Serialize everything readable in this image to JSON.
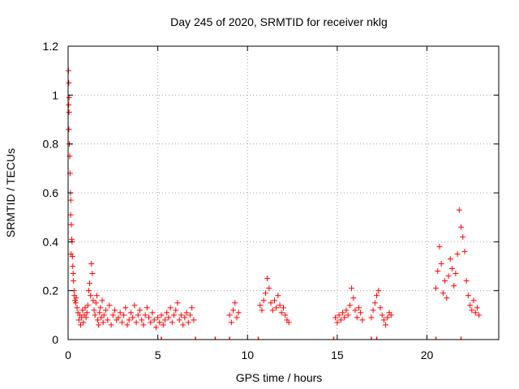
{
  "chart_data": {
    "type": "scatter",
    "title": "Day 245 of 2020, SRMTID for receiver nklg",
    "xlabel": "GPS time / hours",
    "ylabel": "SRMTID / TECUs",
    "xlim": [
      0,
      24
    ],
    "ylim": [
      0,
      1.2
    ],
    "xticks": [
      0,
      5,
      10,
      15,
      20
    ],
    "xtick_labels": [
      "0",
      "5",
      "10",
      "15",
      "20"
    ],
    "yticks": [
      0,
      0.2,
      0.4,
      0.6,
      0.8,
      1,
      1.2
    ],
    "ytick_labels": [
      "0",
      "0.2",
      "0.4",
      "0.6",
      "0.8",
      "1",
      "1.2"
    ],
    "grid": true,
    "marker": "+",
    "color": "#ff0000",
    "series": [
      {
        "name": "SRMTID",
        "points": [
          [
            0.02,
            1.1
          ],
          [
            0.04,
            1.05
          ],
          [
            0.06,
            0.99
          ],
          [
            0.03,
            0.96
          ],
          [
            0.05,
            0.93
          ],
          [
            0.04,
            0.86
          ],
          [
            0.07,
            0.8
          ],
          [
            0.09,
            0.75
          ],
          [
            0.11,
            0.68
          ],
          [
            0.13,
            0.6
          ],
          [
            0.15,
            0.57
          ],
          [
            0.14,
            0.51
          ],
          [
            0.18,
            0.47
          ],
          [
            0.2,
            0.41
          ],
          [
            0.22,
            0.4
          ],
          [
            0.16,
            0.35
          ],
          [
            0.24,
            0.34
          ],
          [
            0.26,
            0.3
          ],
          [
            0.28,
            0.27
          ],
          [
            0.3,
            0.24
          ],
          [
            0.33,
            0.2
          ],
          [
            0.35,
            0.18
          ],
          [
            0.38,
            0.16
          ],
          [
            0.42,
            0.15
          ],
          [
            0.45,
            0.17
          ],
          [
            0.5,
            0.13
          ],
          [
            0.55,
            0.11
          ],
          [
            0.6,
            0.08
          ],
          [
            0.65,
            0.1
          ],
          [
            0.7,
            0.06
          ],
          [
            0.75,
            0.09
          ],
          [
            0.8,
            0.12
          ],
          [
            0.85,
            0.07
          ],
          [
            0.9,
            0.1
          ],
          [
            0.95,
            0.13
          ],
          [
            1.0,
            0.09
          ],
          [
            1.05,
            0.11
          ],
          [
            1.1,
            0.14
          ],
          [
            1.15,
            0.2
          ],
          [
            1.2,
            0.23
          ],
          [
            1.25,
            0.18
          ],
          [
            1.3,
            0.31
          ],
          [
            1.35,
            0.27
          ],
          [
            1.4,
            0.16
          ],
          [
            1.45,
            0.12
          ],
          [
            1.5,
            0.1
          ],
          [
            1.55,
            0.15
          ],
          [
            1.6,
            0.18
          ],
          [
            1.65,
            0.08
          ],
          [
            1.7,
            0.06
          ],
          [
            1.75,
            0.11
          ],
          [
            1.8,
            0.13
          ],
          [
            1.85,
            0.09
          ],
          [
            1.9,
            0.16
          ],
          [
            1.95,
            0.07
          ],
          [
            2.0,
            0.1
          ],
          [
            2.1,
            0.12
          ],
          [
            2.2,
            0.08
          ],
          [
            2.3,
            0.14
          ],
          [
            2.4,
            0.06
          ],
          [
            2.5,
            0.1
          ],
          [
            2.6,
            0.12
          ],
          [
            2.7,
            0.08
          ],
          [
            2.8,
            0.09
          ],
          [
            2.9,
            0.11
          ],
          [
            3.0,
            0.07
          ],
          [
            3.1,
            0.1
          ],
          [
            3.2,
            0.13
          ],
          [
            3.3,
            0.06
          ],
          [
            3.4,
            0.08
          ],
          [
            3.5,
            0.11
          ],
          [
            3.6,
            0.09
          ],
          [
            3.7,
            0.14
          ],
          [
            3.8,
            0.07
          ],
          [
            3.9,
            0.1
          ],
          [
            4.0,
            0.12
          ],
          [
            4.1,
            0.08
          ],
          [
            4.2,
            0.06
          ],
          [
            4.3,
            0.1
          ],
          [
            4.4,
            0.13
          ],
          [
            4.5,
            0.09
          ],
          [
            4.6,
            0.07
          ],
          [
            4.7,
            0.11
          ],
          [
            4.8,
            0.08
          ],
          [
            4.9,
            0.05
          ],
          [
            5.0,
            0.09
          ],
          [
            5.1,
            0.07
          ],
          [
            5.2,
            0.1
          ],
          [
            5.3,
            0.06
          ],
          [
            5.4,
            0.08
          ],
          [
            5.5,
            0.11
          ],
          [
            5.6,
            0.09
          ],
          [
            5.7,
            0.13
          ],
          [
            5.8,
            0.07
          ],
          [
            5.9,
            0.1
          ],
          [
            6.0,
            0.12
          ],
          [
            6.1,
            0.15
          ],
          [
            6.2,
            0.08
          ],
          [
            6.3,
            0.1
          ],
          [
            6.4,
            0.06
          ],
          [
            6.5,
            0.09
          ],
          [
            6.6,
            0.11
          ],
          [
            6.7,
            0.07
          ],
          [
            6.8,
            0.1
          ],
          [
            6.9,
            0.13
          ],
          [
            7.0,
            0.08
          ],
          [
            9.0,
            0.1
          ],
          [
            9.1,
            0.07
          ],
          [
            9.2,
            0.12
          ],
          [
            9.3,
            0.15
          ],
          [
            9.4,
            0.09
          ],
          [
            9.5,
            0.11
          ],
          [
            10.7,
            0.14
          ],
          [
            10.8,
            0.12
          ],
          [
            10.9,
            0.16
          ],
          [
            11.0,
            0.19
          ],
          [
            11.1,
            0.25
          ],
          [
            11.2,
            0.21
          ],
          [
            11.3,
            0.15
          ],
          [
            11.4,
            0.12
          ],
          [
            11.5,
            0.16
          ],
          [
            11.6,
            0.13
          ],
          [
            11.7,
            0.18
          ],
          [
            11.8,
            0.14
          ],
          [
            11.9,
            0.11
          ],
          [
            12.0,
            0.13
          ],
          [
            12.1,
            0.1
          ],
          [
            12.2,
            0.08
          ],
          [
            12.3,
            0.07
          ],
          [
            14.9,
            0.09
          ],
          [
            15.0,
            0.07
          ],
          [
            15.1,
            0.1
          ],
          [
            15.2,
            0.08
          ],
          [
            15.3,
            0.11
          ],
          [
            15.4,
            0.09
          ],
          [
            15.5,
            0.12
          ],
          [
            15.6,
            0.1
          ],
          [
            15.7,
            0.14
          ],
          [
            15.8,
            0.21
          ],
          [
            15.9,
            0.17
          ],
          [
            16.0,
            0.12
          ],
          [
            16.1,
            0.09
          ],
          [
            16.2,
            0.13
          ],
          [
            16.3,
            0.11
          ],
          [
            16.4,
            0.08
          ],
          [
            16.9,
            0.09
          ],
          [
            17.0,
            0.12
          ],
          [
            17.1,
            0.15
          ],
          [
            17.2,
            0.18
          ],
          [
            17.3,
            0.2
          ],
          [
            17.4,
            0.13
          ],
          [
            17.5,
            0.1
          ],
          [
            17.6,
            0.08
          ],
          [
            17.7,
            0.06
          ],
          [
            17.8,
            0.09
          ],
          [
            17.9,
            0.11
          ],
          [
            18.0,
            0.1
          ],
          [
            20.5,
            0.21
          ],
          [
            20.6,
            0.28
          ],
          [
            20.7,
            0.38
          ],
          [
            20.8,
            0.31
          ],
          [
            20.9,
            0.19
          ],
          [
            21.0,
            0.24
          ],
          [
            21.1,
            0.17
          ],
          [
            21.2,
            0.26
          ],
          [
            21.3,
            0.33
          ],
          [
            21.4,
            0.29
          ],
          [
            21.5,
            0.22
          ],
          [
            21.6,
            0.27
          ],
          [
            21.7,
            0.35
          ],
          [
            21.8,
            0.53
          ],
          [
            21.9,
            0.46
          ],
          [
            22.0,
            0.42
          ],
          [
            22.1,
            0.36
          ],
          [
            22.2,
            0.24
          ],
          [
            22.3,
            0.18
          ],
          [
            22.4,
            0.14
          ],
          [
            22.5,
            0.12
          ],
          [
            22.6,
            0.16
          ],
          [
            22.7,
            0.11
          ],
          [
            22.8,
            0.13
          ],
          [
            22.9,
            0.1
          ]
        ]
      }
    ],
    "baseline_points": [
      5.2,
      7.1,
      8.2,
      9.0,
      10.6,
      14.8,
      16.9,
      17.2,
      20.5,
      21.9
    ]
  }
}
